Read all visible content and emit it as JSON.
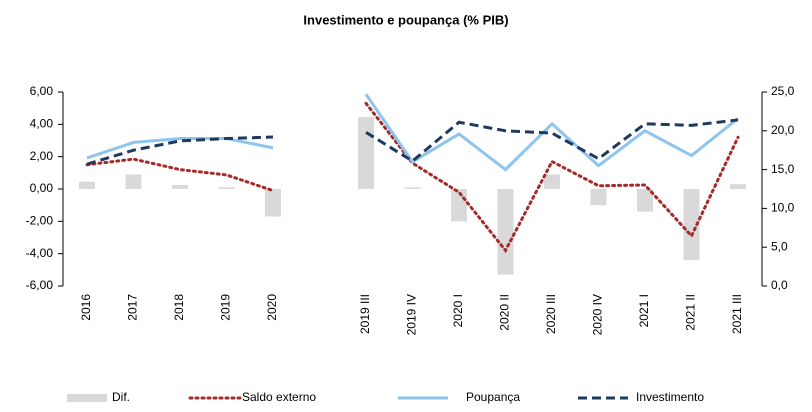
{
  "chart_data": {
    "type": "combo",
    "title": "Investimento e poupança (% PIB)",
    "categories": [
      "2016",
      "2017",
      "2018",
      "2019",
      "2020",
      null,
      "2019 III",
      "2019 IV",
      "2020 I",
      "2020 II",
      "2020 III",
      "2020 IV",
      "2021 I",
      "2021 II",
      "2021 III"
    ],
    "series": [
      {
        "name": "Dif.",
        "type": "bar",
        "color": "#d9d9d9",
        "values": [
          0.45,
          0.9,
          0.25,
          0.1,
          -1.7,
          null,
          4.45,
          0.1,
          -2.0,
          -5.3,
          0.9,
          -1.0,
          -1.4,
          -4.4,
          0.3
        ]
      },
      {
        "name": "Saldo externo",
        "type": "line",
        "dash": "dotted",
        "color": "#a52a2a",
        "values": [
          1.5,
          1.85,
          1.2,
          0.87,
          -0.1,
          null,
          5.3,
          1.6,
          -0.2,
          -3.8,
          1.7,
          0.2,
          0.25,
          -2.9,
          3.2
        ]
      },
      {
        "name": "Poupança",
        "type": "line",
        "dash": "solid",
        "color": "#8ec4f0",
        "axis": "y2",
        "values": [
          16.5,
          18.5,
          19.0,
          19.0,
          17.8,
          null,
          24.7,
          16.0,
          19.6,
          15.0,
          20.9,
          15.5,
          20.0,
          16.8,
          21.6
        ]
      },
      {
        "name": "Investimento",
        "type": "line",
        "dash": "dashed",
        "color": "#1f3a5f",
        "axis": "y2",
        "values": [
          15.7,
          17.5,
          18.7,
          19.0,
          19.2,
          null,
          19.8,
          16.1,
          21.1,
          20.0,
          19.7,
          16.4,
          20.9,
          20.7,
          21.4
        ]
      }
    ],
    "ylim": [
      -6,
      6
    ],
    "yticks": [
      {
        "value": -6,
        "label": "-6,00"
      },
      {
        "value": -4,
        "label": "-4,00"
      },
      {
        "value": -2,
        "label": "-2,00"
      },
      {
        "value": 0,
        "label": "0,00"
      },
      {
        "value": 2,
        "label": "2,00"
      },
      {
        "value": 4,
        "label": "4,00"
      },
      {
        "value": 6,
        "label": "6,00"
      }
    ],
    "y2lim": [
      0,
      25
    ],
    "y2ticks": [
      {
        "value": 0,
        "label": "0,0"
      },
      {
        "value": 5,
        "label": "5,0"
      },
      {
        "value": 10,
        "label": "10,0"
      },
      {
        "value": 15,
        "label": "15,0"
      },
      {
        "value": 20,
        "label": "20,0"
      },
      {
        "value": 25,
        "label": "25,0"
      }
    ],
    "grid": false
  }
}
